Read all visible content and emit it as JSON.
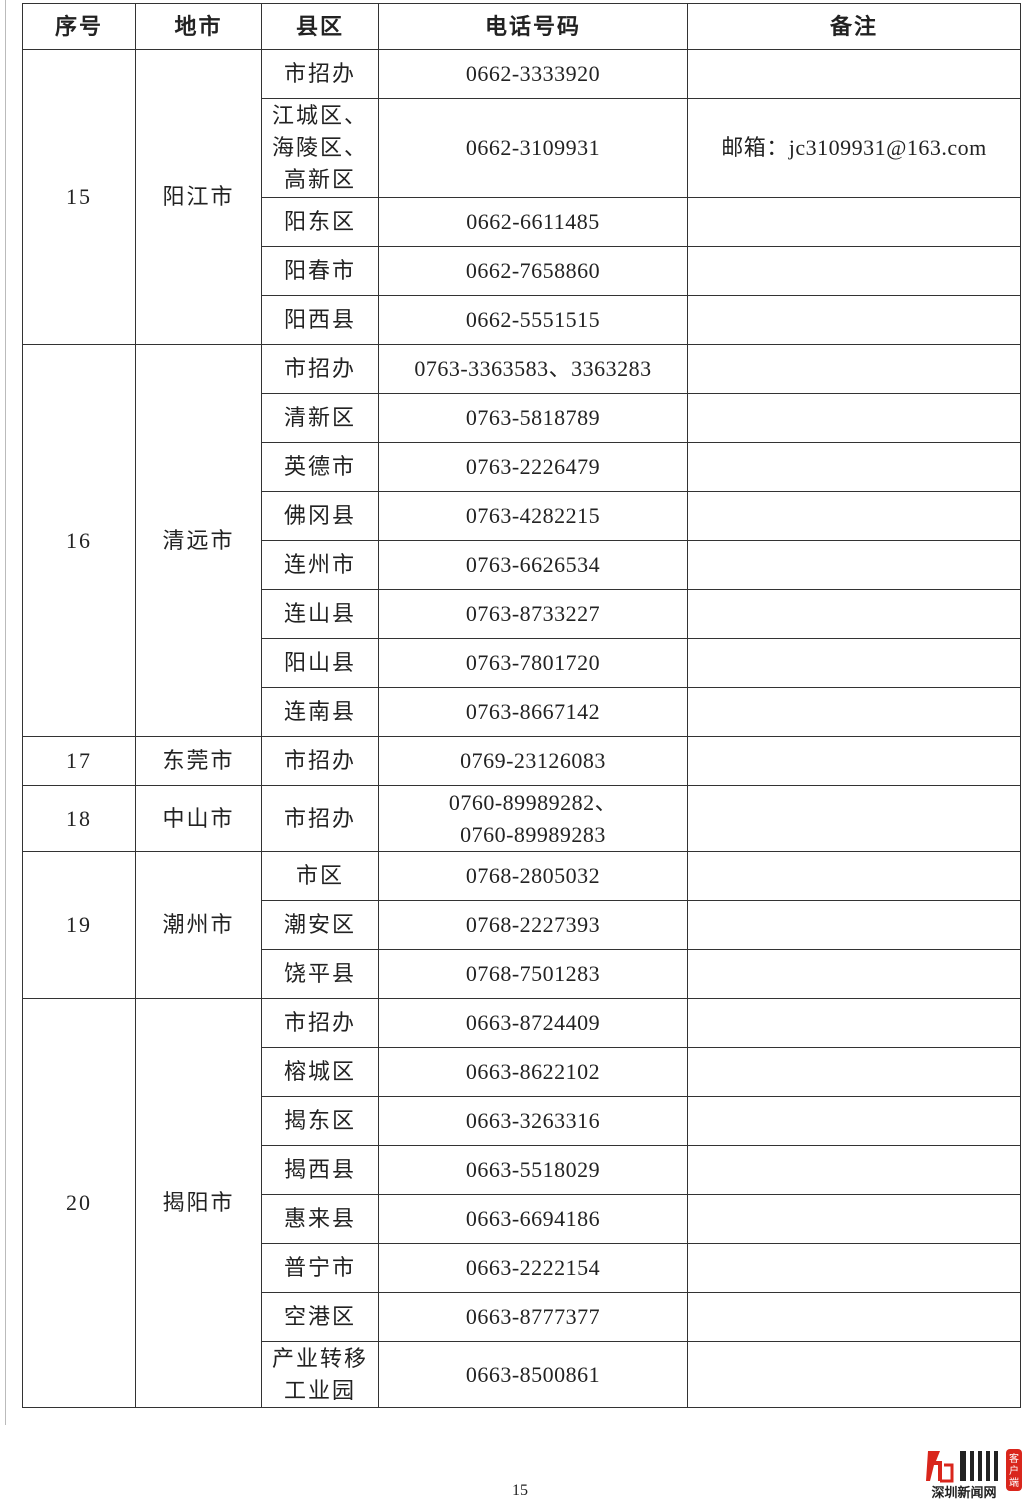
{
  "headers": [
    "序号",
    "地市",
    "县区",
    "电话号码",
    "备注"
  ],
  "groups": [
    {
      "no": "15",
      "city": "阳江市",
      "rows": [
        {
          "district": "市招办",
          "phone": "0662-3333920",
          "note": ""
        },
        {
          "district": "江城区、海陵区、高新区",
          "phone": "0662-3109931",
          "note": "邮箱：jc3109931@163.com"
        },
        {
          "district": "阳东区",
          "phone": "0662-6611485",
          "note": ""
        },
        {
          "district": "阳春市",
          "phone": "0662-7658860",
          "note": ""
        },
        {
          "district": "阳西县",
          "phone": "0662-5551515",
          "note": ""
        }
      ]
    },
    {
      "no": "16",
      "city": "清远市",
      "rows": [
        {
          "district": "市招办",
          "phone": "0763-3363583、3363283",
          "note": ""
        },
        {
          "district": "清新区",
          "phone": "0763-5818789",
          "note": ""
        },
        {
          "district": "英德市",
          "phone": "0763-2226479",
          "note": ""
        },
        {
          "district": "佛冈县",
          "phone": "0763-4282215",
          "note": ""
        },
        {
          "district": "连州市",
          "phone": "0763-6626534",
          "note": ""
        },
        {
          "district": "连山县",
          "phone": "0763-8733227",
          "note": ""
        },
        {
          "district": "阳山县",
          "phone": "0763-7801720",
          "note": ""
        },
        {
          "district": "连南县",
          "phone": "0763-8667142",
          "note": ""
        }
      ]
    },
    {
      "no": "17",
      "city": "东莞市",
      "rows": [
        {
          "district": "市招办",
          "phone": "0769-23126083",
          "note": ""
        }
      ]
    },
    {
      "no": "18",
      "city": "中山市",
      "rows": [
        {
          "district": "市招办",
          "phone": "0760-89989282、0760-89989283",
          "note": ""
        }
      ]
    },
    {
      "no": "19",
      "city": "潮州市",
      "rows": [
        {
          "district": "市区",
          "phone": "0768-2805032",
          "note": ""
        },
        {
          "district": "潮安区",
          "phone": "0768-2227393",
          "note": ""
        },
        {
          "district": "饶平县",
          "phone": "0768-7501283",
          "note": ""
        }
      ]
    },
    {
      "no": "20",
      "city": "揭阳市",
      "rows": [
        {
          "district": "市招办",
          "phone": "0663-8724409",
          "note": ""
        },
        {
          "district": "榕城区",
          "phone": "0663-8622102",
          "note": ""
        },
        {
          "district": "揭东区",
          "phone": "0663-3263316",
          "note": ""
        },
        {
          "district": "揭西县",
          "phone": "0663-5518029",
          "note": ""
        },
        {
          "district": "惠来县",
          "phone": "0663-6694186",
          "note": ""
        },
        {
          "district": "普宁市",
          "phone": "0663-2222154",
          "note": ""
        },
        {
          "district": "空港区",
          "phone": "0663-8777377",
          "note": ""
        },
        {
          "district": "产业转移工业园",
          "phone": "0663-8500861",
          "note": ""
        }
      ]
    }
  ],
  "page_number": "15",
  "logo": {
    "text": "深圳新闻网",
    "badge": "客户端",
    "brand_color": "#d9261c"
  }
}
